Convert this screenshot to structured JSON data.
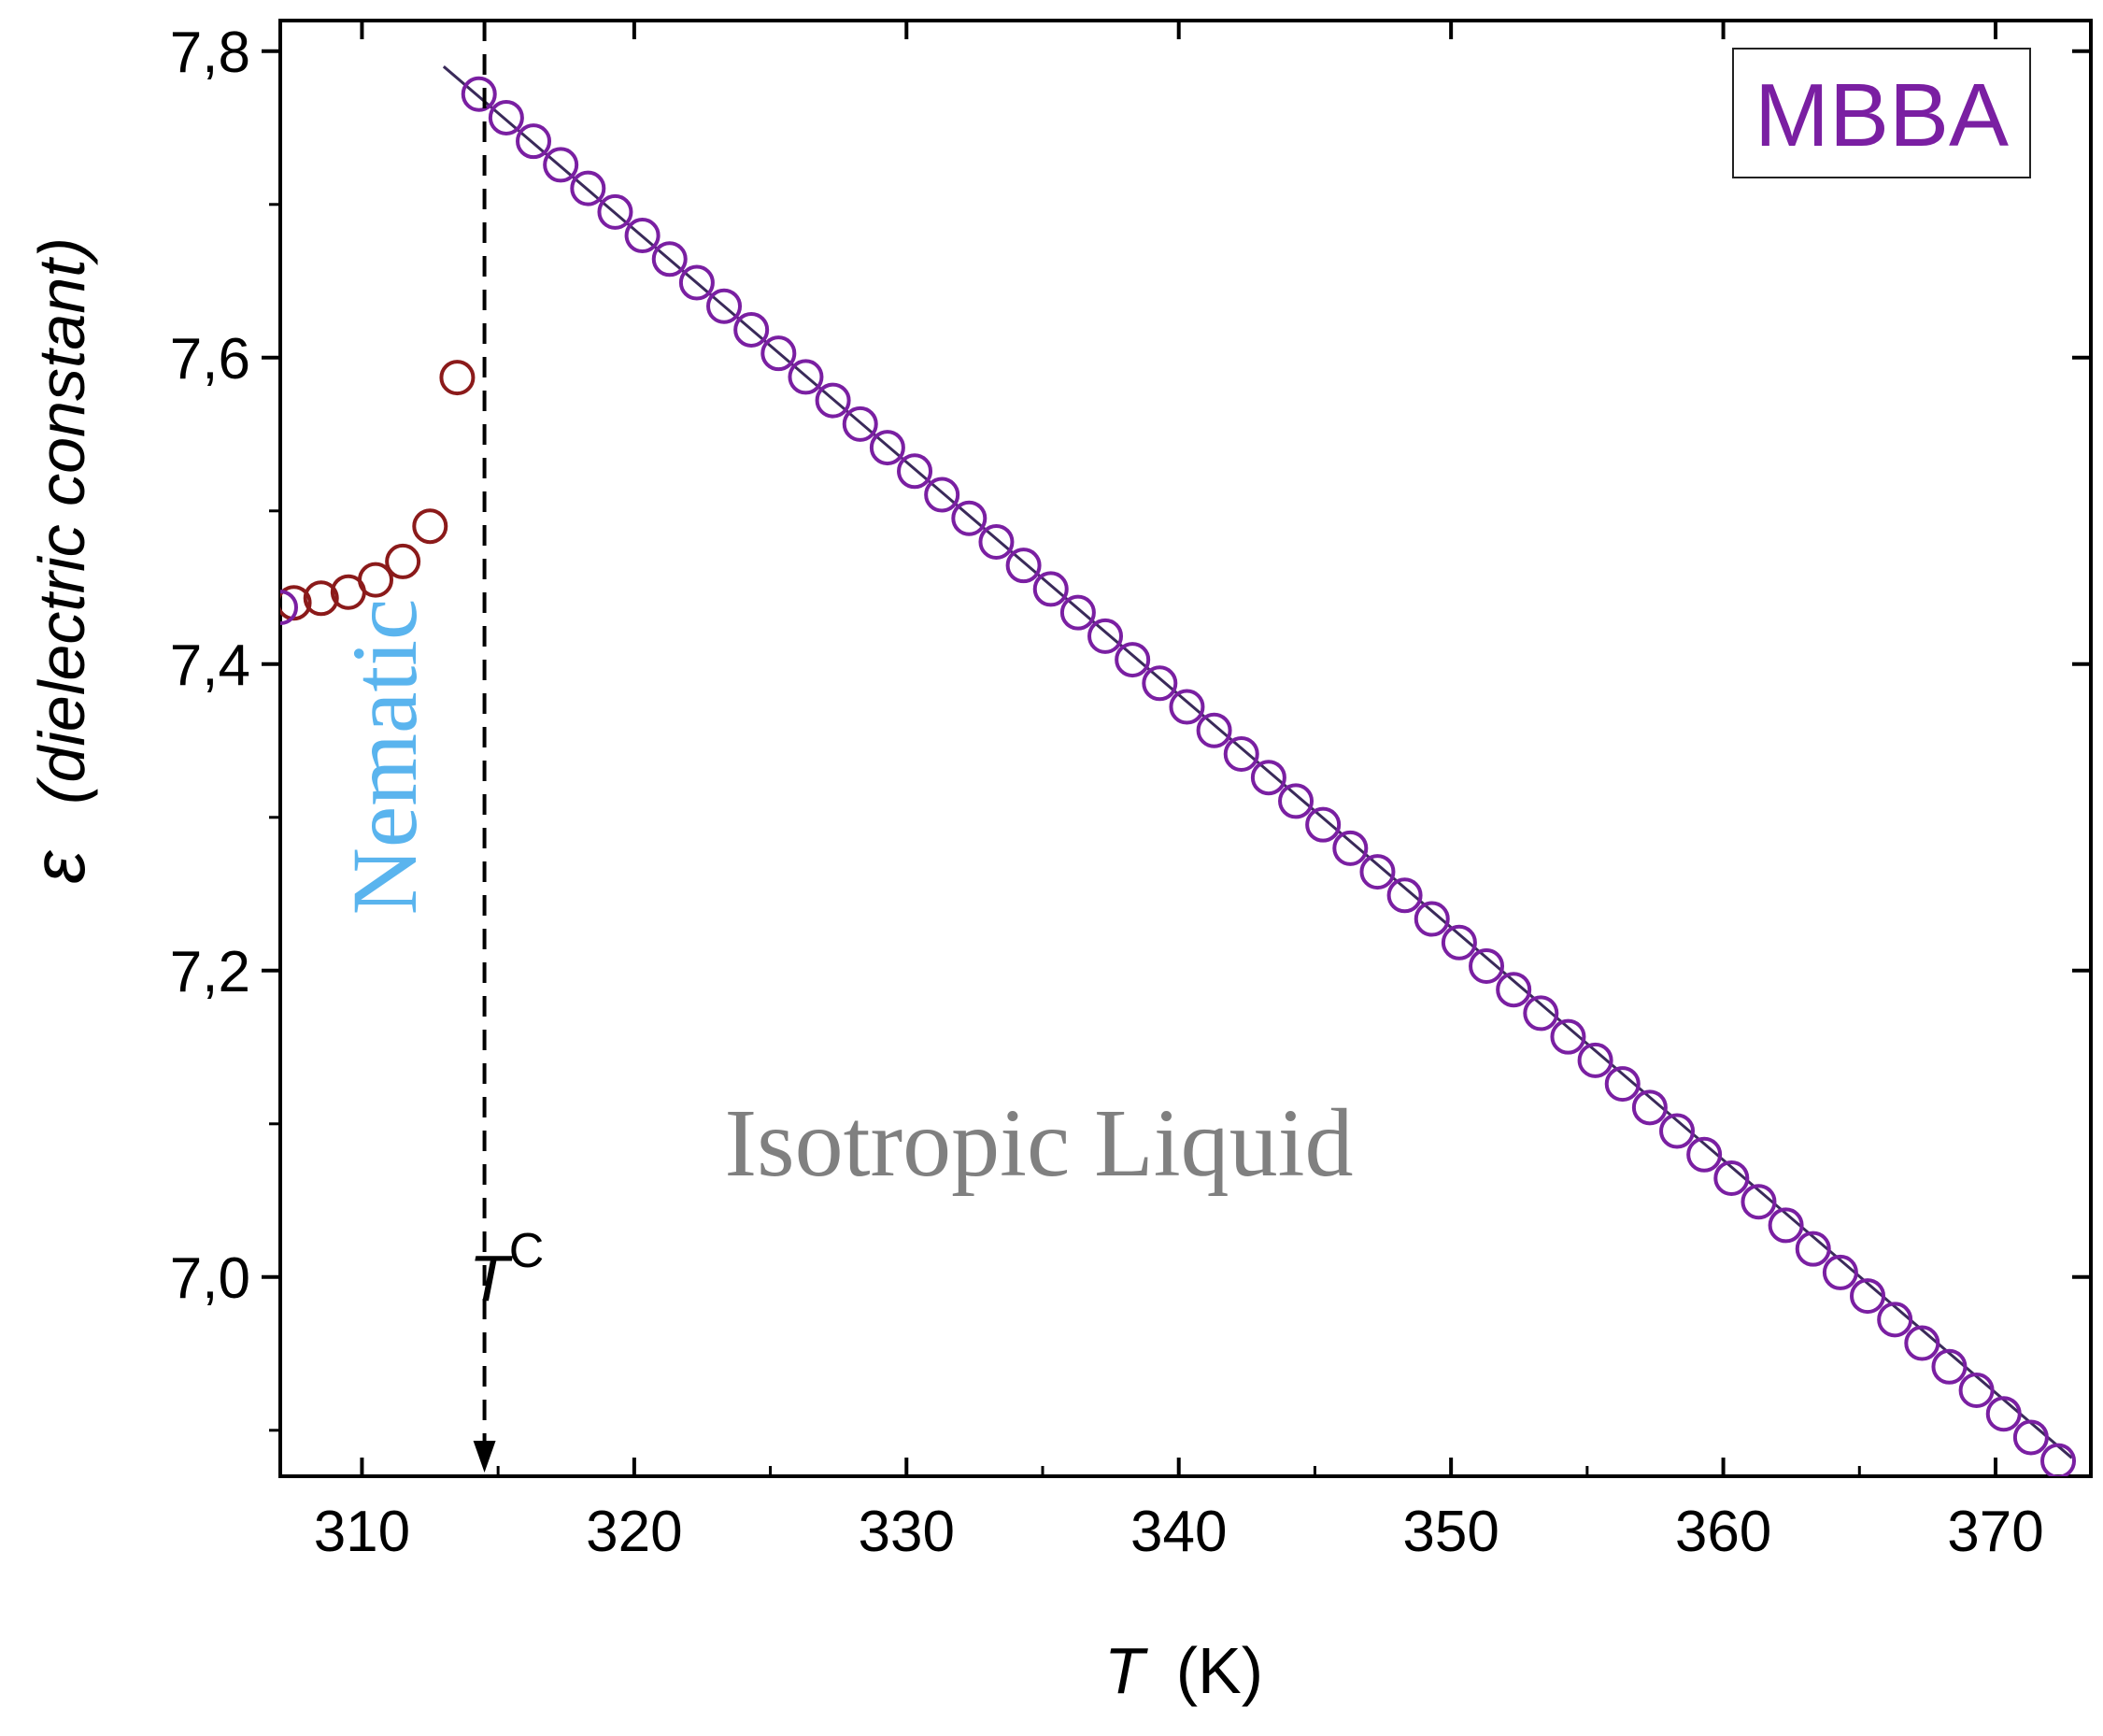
{
  "chart_data": {
    "type": "scatter",
    "title": "",
    "xlabel": "T",
    "xlabel_unit": "(K)",
    "ylabel_symbol": "ε",
    "ylabel_text": "(dielectric constant)",
    "xlim": [
      307,
      373.5
    ],
    "ylim": [
      6.87,
      7.82
    ],
    "x_ticks": [
      310,
      320,
      330,
      340,
      350,
      360,
      370
    ],
    "x_tick_labels": [
      "310",
      "320",
      "330",
      "340",
      "350",
      "360",
      "370"
    ],
    "y_ticks": [
      7.0,
      7.2,
      7.4,
      7.6,
      7.8
    ],
    "y_tick_labels": [
      "7,0",
      "7,2",
      "7,4",
      "7,6",
      "7,8"
    ],
    "series": [
      {
        "name": "Nematic",
        "color": "#8b1a1a",
        "x": [
          307.5,
          308.5,
          309.5,
          310.5,
          311.5,
          312.5,
          313.5
        ],
        "y": [
          7.44,
          7.443,
          7.447,
          7.455,
          7.467,
          7.49,
          7.587
        ]
      },
      {
        "name": "Isotropic Liquid",
        "color": "#7a1fa2",
        "x_start": 314.3,
        "x_step": 1,
        "count": 59,
        "y_start": 7.772,
        "slope": -0.01538
      }
    ],
    "extra_point": {
      "x": 307,
      "y": 7.437,
      "color": "#7a1fa2"
    },
    "fit_line": {
      "x": [
        313,
        372.8
      ],
      "y": [
        7.79,
        6.882
      ],
      "color": "#3a2a5a"
    },
    "transition": {
      "label": "T",
      "superscript": "C",
      "x": 314.5
    },
    "annotations": {
      "nematic": "Nematic",
      "isotropic": "Isotropic Liquid",
      "sample": "MBBA"
    },
    "colors": {
      "nematic_text": "#5ab4ee",
      "isotropic_text": "#808080",
      "sample_text": "#7a1fa2"
    }
  }
}
